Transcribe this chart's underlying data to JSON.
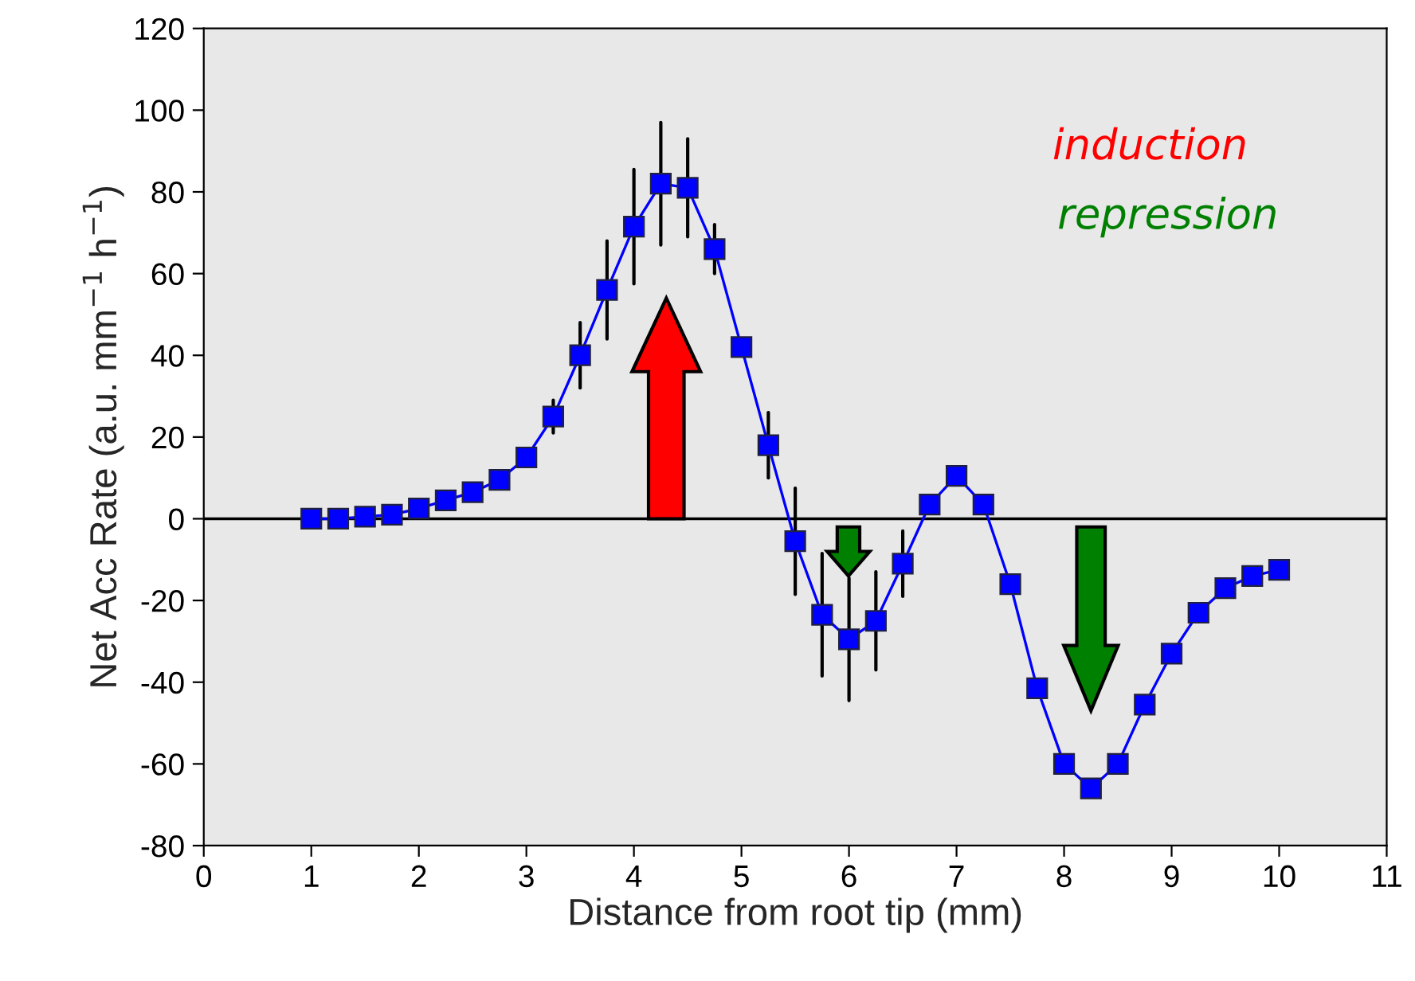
{
  "chart_data": {
    "type": "line",
    "xlabel": "Distance from root tip (mm)",
    "ylabel": "Net Acc Rate (a.u. mm$^{−1}$ h$^{−1}$)",
    "x": [
      1,
      1.25,
      1.5,
      1.75,
      2,
      2.25,
      2.5,
      2.75,
      3,
      3.25,
      3.5,
      3.75,
      4,
      4.25,
      4.5,
      4.75,
      5,
      5.25,
      5.5,
      5.75,
      6,
      6.25,
      6.5,
      6.75,
      7,
      7.25,
      7.5,
      7.75,
      8,
      8.25,
      8.5,
      8.75,
      9,
      9.25,
      9.5,
      9.75,
      10
    ],
    "series": [
      {
        "color": "#0000ff",
        "values": [
          0,
          0,
          0.5,
          1,
          2.5,
          4.5,
          6.5,
          9.5,
          15,
          25,
          40,
          56,
          71.5,
          82,
          81,
          66,
          42,
          18,
          -5.5,
          -23.5,
          -29.5,
          -25,
          -11,
          3.5,
          10.5,
          3.5,
          -16,
          -41.5,
          -60,
          -66,
          -60,
          -45.5,
          -33,
          -23,
          -17,
          -14,
          -12.5
        ],
        "errors": [
          null,
          null,
          null,
          null,
          null,
          null,
          null,
          null,
          null,
          4,
          8,
          12,
          14,
          15,
          12,
          6,
          null,
          8,
          13,
          15,
          15,
          12,
          8,
          2,
          null,
          null,
          null,
          null,
          null,
          null,
          null,
          null,
          null,
          null,
          null,
          null,
          null
        ]
      }
    ],
    "marker": "square",
    "line_style": "solid",
    "xlim": [
      0,
      11
    ],
    "xticks": [
      0,
      1,
      2,
      3,
      4,
      5,
      6,
      7,
      8,
      9,
      10,
      11
    ],
    "ylim": [
      -80,
      120
    ],
    "yticks": [
      -80,
      -60,
      -40,
      -20,
      0,
      20,
      40,
      60,
      80,
      100,
      120
    ],
    "ref_lines": [
      {
        "axis": "y",
        "value": 0,
        "color": "#000000"
      }
    ],
    "annotations": [
      "induction",
      "repression"
    ],
    "grid": false,
    "legend": false
  }
}
